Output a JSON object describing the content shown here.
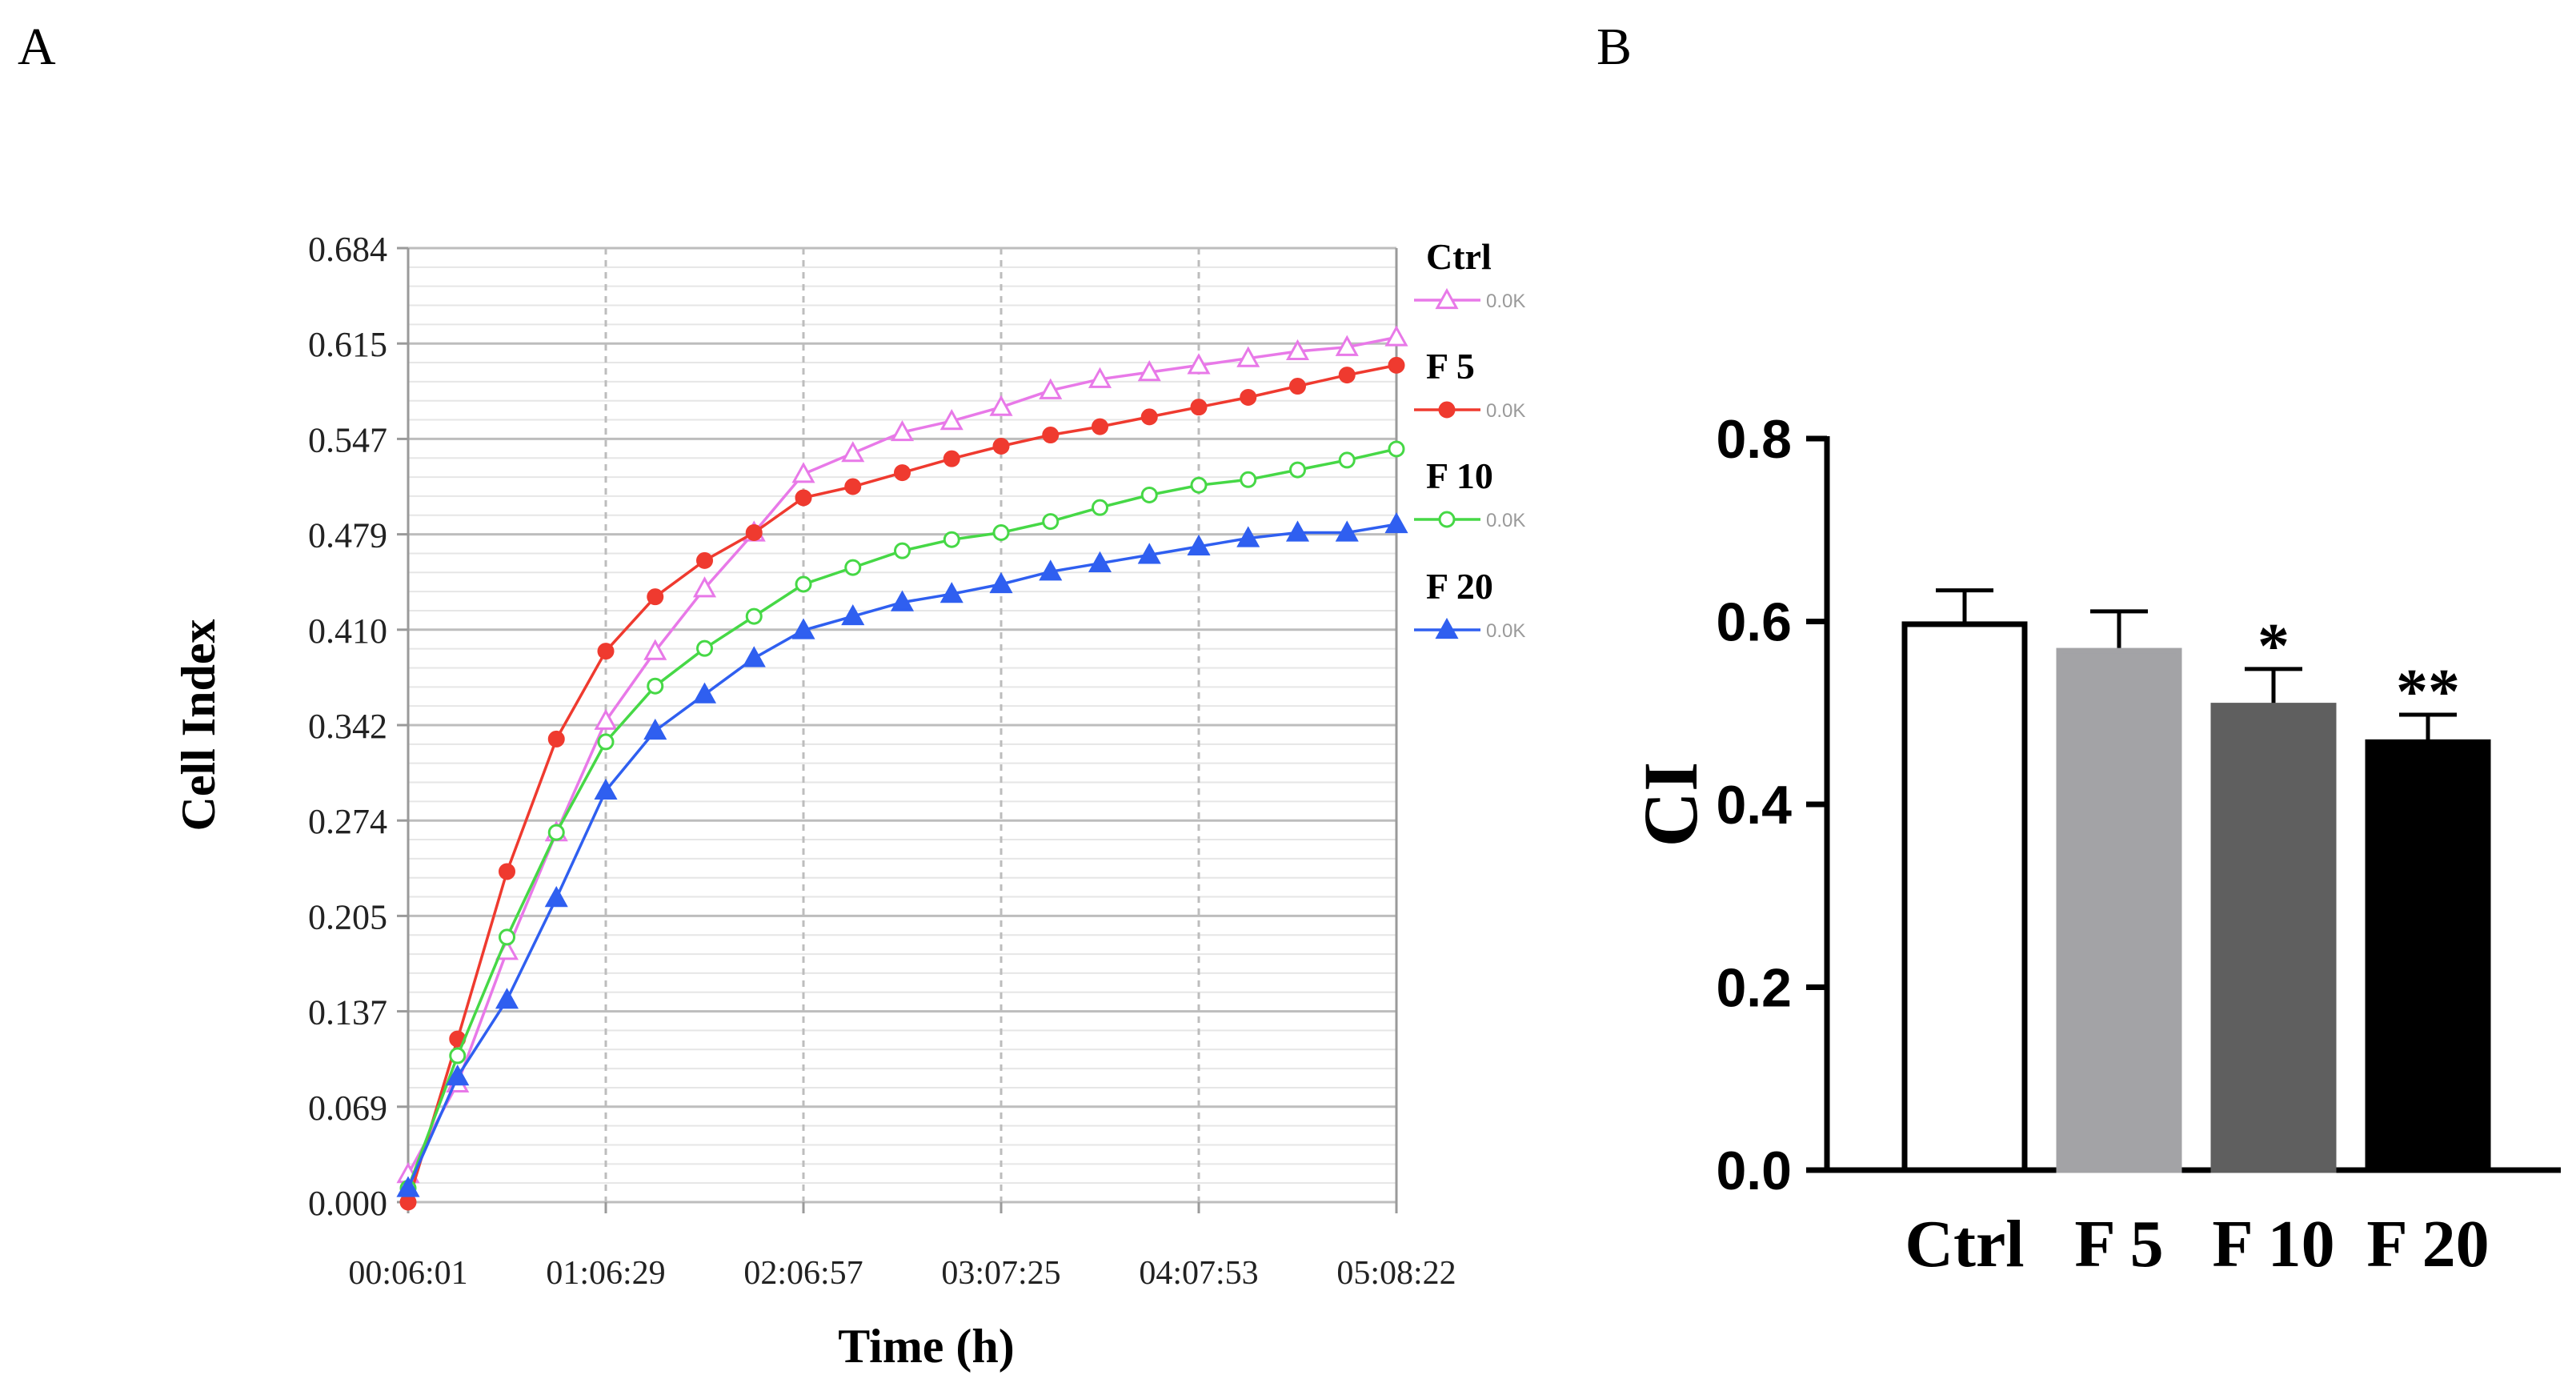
{
  "panels": {
    "a_label": "A",
    "b_label": "B"
  },
  "chart_data": [
    {
      "type": "line",
      "panel": "A",
      "title": "",
      "xlabel": "Time (h)",
      "ylabel": "Cell Index",
      "ylim": [
        0,
        0.684
      ],
      "yticks": [
        "0.000",
        "0.069",
        "0.137",
        "0.205",
        "0.274",
        "0.342",
        "0.410",
        "0.479",
        "0.547",
        "0.615",
        "0.684"
      ],
      "xticks": [
        "00:06:01",
        "01:06:29",
        "02:06:57",
        "03:07:25",
        "04:07:53",
        "05:08:22"
      ],
      "grid": true,
      "legend_position": "right",
      "series": [
        {
          "name": "Ctrl",
          "legend_note": "0.0K",
          "color": "#e879e8",
          "marker": "triangle-open",
          "values": [
            0.02,
            0.085,
            0.18,
            0.265,
            0.345,
            0.395,
            0.44,
            0.48,
            0.522,
            0.537,
            0.552,
            0.56,
            0.57,
            0.582,
            0.59,
            0.595,
            0.6,
            0.605,
            0.61,
            0.613,
            0.62
          ]
        },
        {
          "name": "F 5",
          "legend_note": "0.0K",
          "color": "#ef3a2f",
          "marker": "circle-filled",
          "values": [
            0.0,
            0.117,
            0.237,
            0.332,
            0.395,
            0.434,
            0.46,
            0.48,
            0.505,
            0.513,
            0.523,
            0.533,
            0.542,
            0.55,
            0.556,
            0.563,
            0.57,
            0.577,
            0.585,
            0.593,
            0.6
          ]
        },
        {
          "name": "F 10",
          "legend_note": "0.0K",
          "color": "#46d846",
          "marker": "circle-open",
          "values": [
            0.01,
            0.105,
            0.19,
            0.265,
            0.33,
            0.37,
            0.397,
            0.42,
            0.443,
            0.455,
            0.467,
            0.475,
            0.48,
            0.488,
            0.498,
            0.507,
            0.514,
            0.518,
            0.525,
            0.532,
            0.54
          ]
        },
        {
          "name": "F 20",
          "legend_note": "0.0K",
          "color": "#2f5ff0",
          "marker": "triangle-filled",
          "values": [
            0.01,
            0.09,
            0.145,
            0.218,
            0.295,
            0.338,
            0.364,
            0.39,
            0.41,
            0.42,
            0.43,
            0.436,
            0.443,
            0.452,
            0.458,
            0.464,
            0.47,
            0.476,
            0.48,
            0.48,
            0.486
          ]
        }
      ]
    },
    {
      "type": "bar",
      "panel": "B",
      "title": "",
      "xlabel": "",
      "ylabel": "CI",
      "ylim": [
        0,
        0.8
      ],
      "yticks": [
        "0.0",
        "0.2",
        "0.4",
        "0.6",
        "0.8"
      ],
      "categories": [
        "Ctrl",
        "F 5",
        "F 10",
        "F 20"
      ],
      "values": [
        0.597,
        0.568,
        0.508,
        0.468
      ],
      "errors": [
        0.037,
        0.043,
        0.04,
        0.03
      ],
      "fills": [
        "#ffffff",
        "#a3a3a6",
        "#5f5f5f",
        "#000000"
      ],
      "annotations": [
        "",
        "",
        "*",
        "**"
      ]
    }
  ]
}
